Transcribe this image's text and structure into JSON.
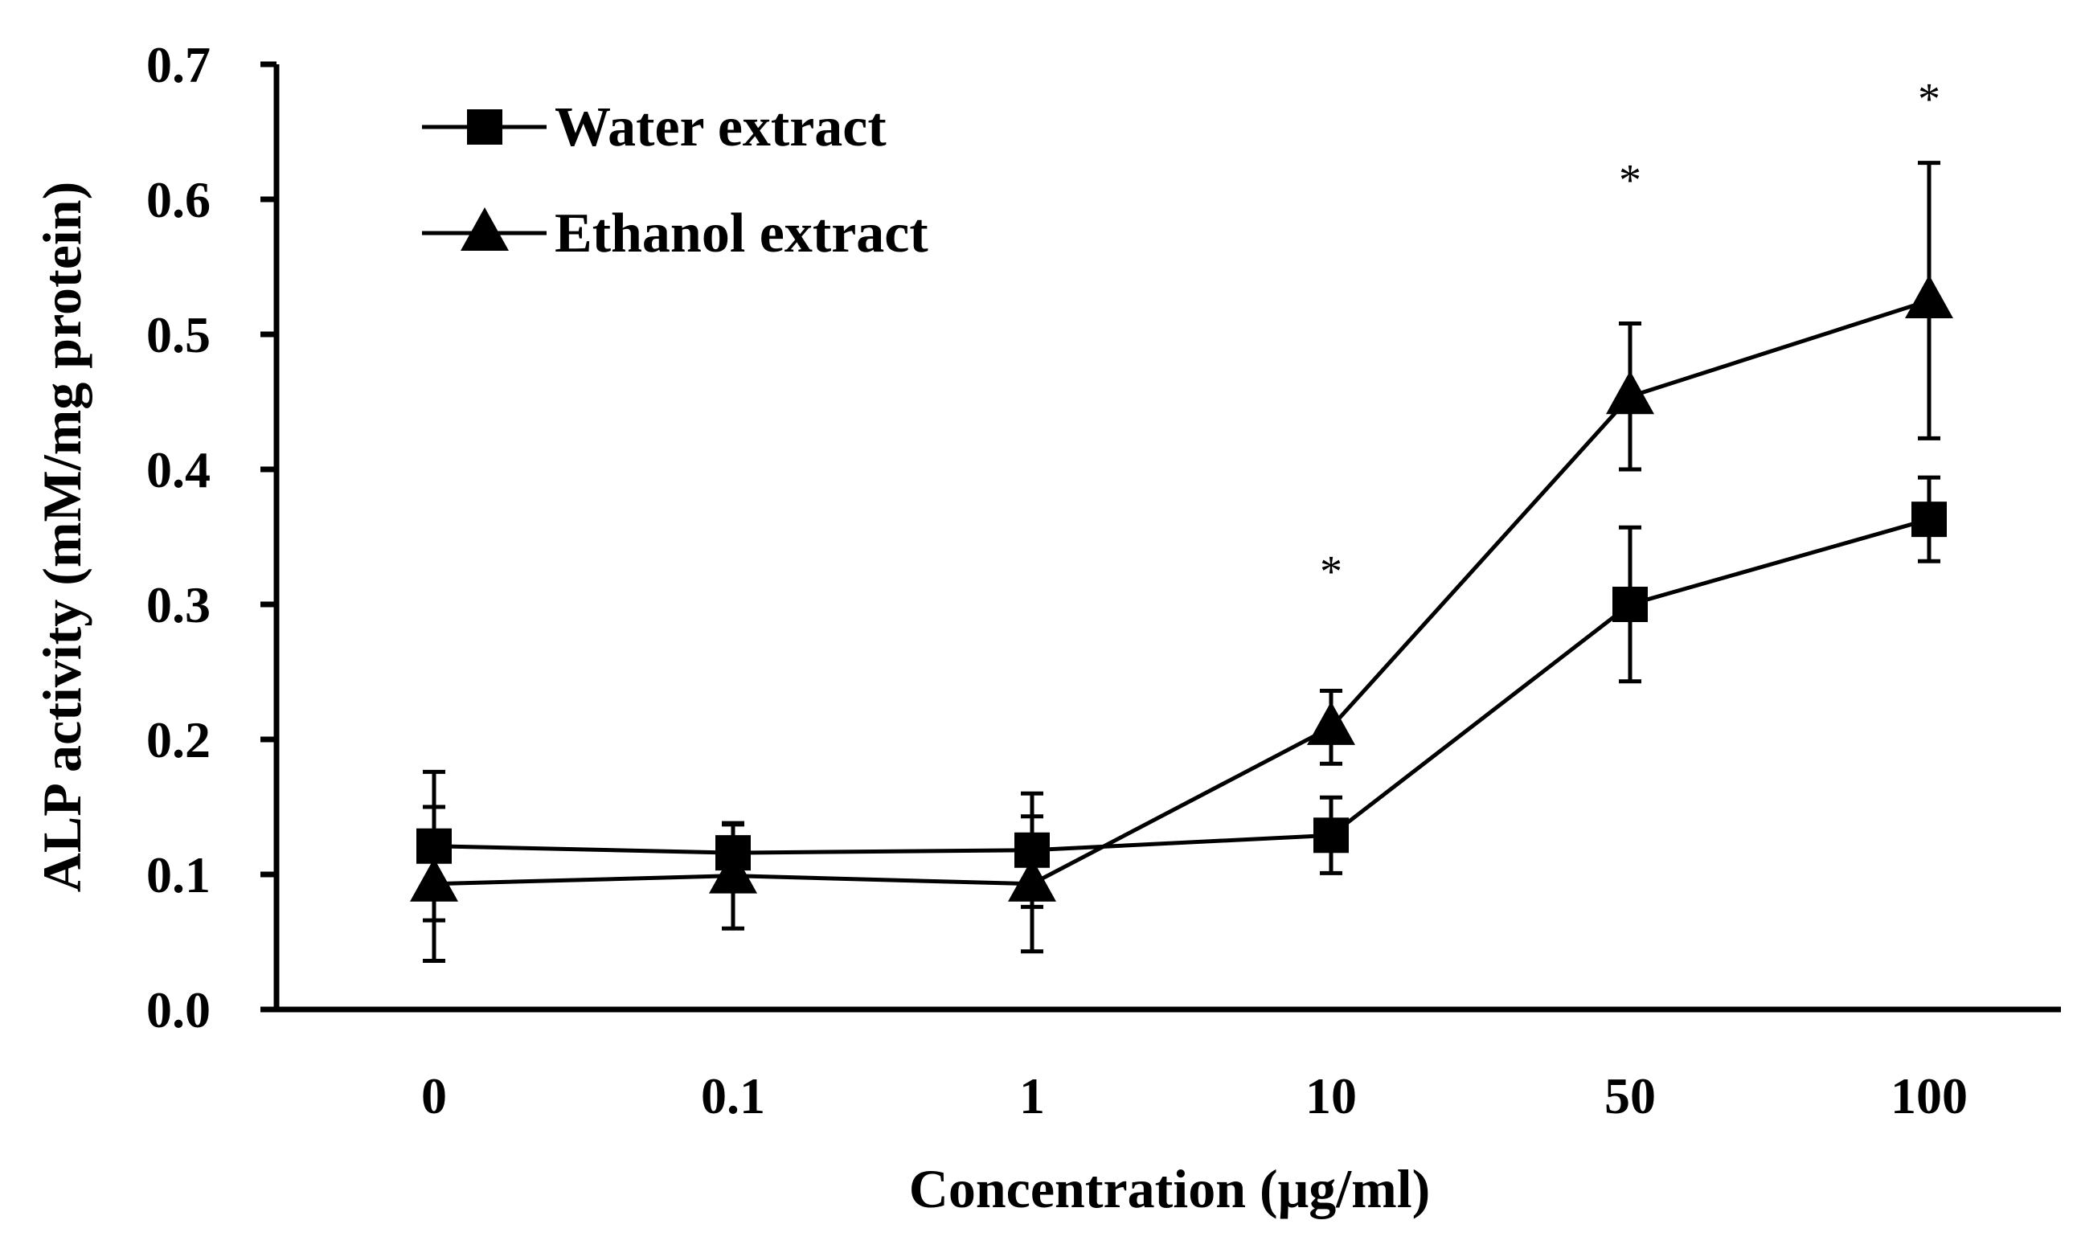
{
  "colors": {
    "ink": "#000000",
    "background": "#ffffff"
  },
  "chart_data": {
    "type": "line",
    "categories": [
      "0",
      "0.1",
      "1",
      "10",
      "50",
      "100"
    ],
    "series": [
      {
        "name": "Water extract",
        "marker": "square",
        "values": [
          0.121,
          0.116,
          0.118,
          0.129,
          0.3,
          0.363
        ],
        "errors": [
          0.055,
          0.021,
          0.042,
          0.028,
          0.057,
          0.031
        ]
      },
      {
        "name": "Ethanol extract",
        "marker": "triangle",
        "values": [
          0.093,
          0.099,
          0.093,
          0.209,
          0.454,
          0.525
        ],
        "errors": [
          0.057,
          0.039,
          0.05,
          0.027,
          0.054,
          0.102
        ]
      }
    ],
    "significance": [
      {
        "category": "10",
        "text": "*",
        "y": 0.33
      },
      {
        "category": "50",
        "text": "*",
        "y": 0.62
      },
      {
        "category": "100",
        "text": "*",
        "y": 0.68
      }
    ],
    "xlabel": "Concentration (μg/ml)",
    "ylabel": "ALP activity (mM/mg protein)",
    "ylim": [
      0,
      0.7
    ],
    "yticks": [
      "0.0",
      "0.1",
      "0.2",
      "0.3",
      "0.4",
      "0.5",
      "0.6",
      "0.7"
    ],
    "grid": false,
    "legend_position": "top-left"
  }
}
